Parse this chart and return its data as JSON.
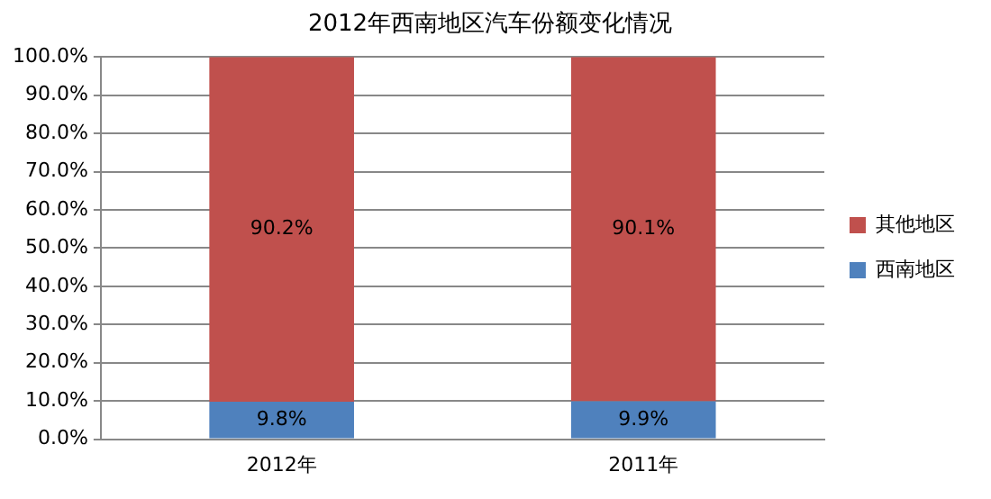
{
  "chart_data": {
    "type": "bar",
    "title": "2012年西南地区汽车份额变化情况",
    "categories": [
      "2012年",
      "2011年"
    ],
    "stacked": true,
    "series": [
      {
        "name": "西南地区",
        "color": "#4f81bd",
        "values": [
          9.8,
          9.9
        ],
        "value_labels": [
          "9.8%",
          "9.9%"
        ]
      },
      {
        "name": "其他地区",
        "color": "#c0504d",
        "values": [
          90.2,
          90.1
        ],
        "value_labels": [
          "90.2%",
          "90.1%"
        ]
      }
    ],
    "ylim": [
      0,
      100
    ],
    "yticks": [
      {
        "value": 0,
        "label": "0.0%"
      },
      {
        "value": 10,
        "label": "10.0%"
      },
      {
        "value": 20,
        "label": "20.0%"
      },
      {
        "value": 30,
        "label": "30.0%"
      },
      {
        "value": 40,
        "label": "40.0%"
      },
      {
        "value": 50,
        "label": "50.0%"
      },
      {
        "value": 60,
        "label": "60.0%"
      },
      {
        "value": 70,
        "label": "70.0%"
      },
      {
        "value": 80,
        "label": "80.0%"
      },
      {
        "value": 90,
        "label": "90.0%"
      },
      {
        "value": 100,
        "label": "100.0%"
      }
    ],
    "grid": "y",
    "legend": "right"
  }
}
